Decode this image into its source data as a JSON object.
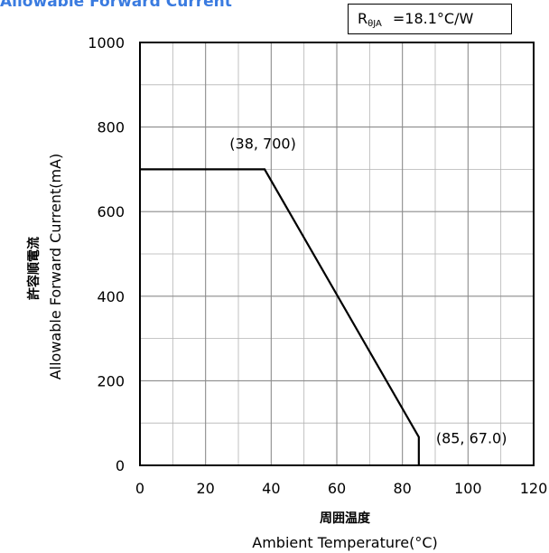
{
  "header": {
    "title": "Allowable Forward Current"
  },
  "thermal_box": {
    "symbol": "R",
    "subscript": "θJA",
    "value": "=18.1°C/W"
  },
  "chart_data": {
    "type": "line",
    "title": "Allowable Forward Current",
    "xlabel": "周囲温度",
    "xlabel_en": "Ambient Temperature(°C)",
    "ylabel": "許容順電流",
    "ylabel_en": "Allowable Forward Current(mA)",
    "xlim": [
      0,
      120
    ],
    "ylim": [
      0,
      1000
    ],
    "xticks": [
      0,
      20,
      40,
      60,
      80,
      100,
      120
    ],
    "yticks": [
      0,
      200,
      400,
      600,
      800,
      1000
    ],
    "x_minor_step": 10,
    "y_minor_step": 100,
    "grid": true,
    "series": [
      {
        "x": [
          0,
          38,
          85,
          85
        ],
        "y": [
          700,
          700,
          67,
          0
        ]
      }
    ],
    "annotations": [
      {
        "text": "(38, 700)",
        "x": 38,
        "y": 700
      },
      {
        "text": "(85, 67.0)",
        "x": 85,
        "y": 67
      }
    ]
  }
}
